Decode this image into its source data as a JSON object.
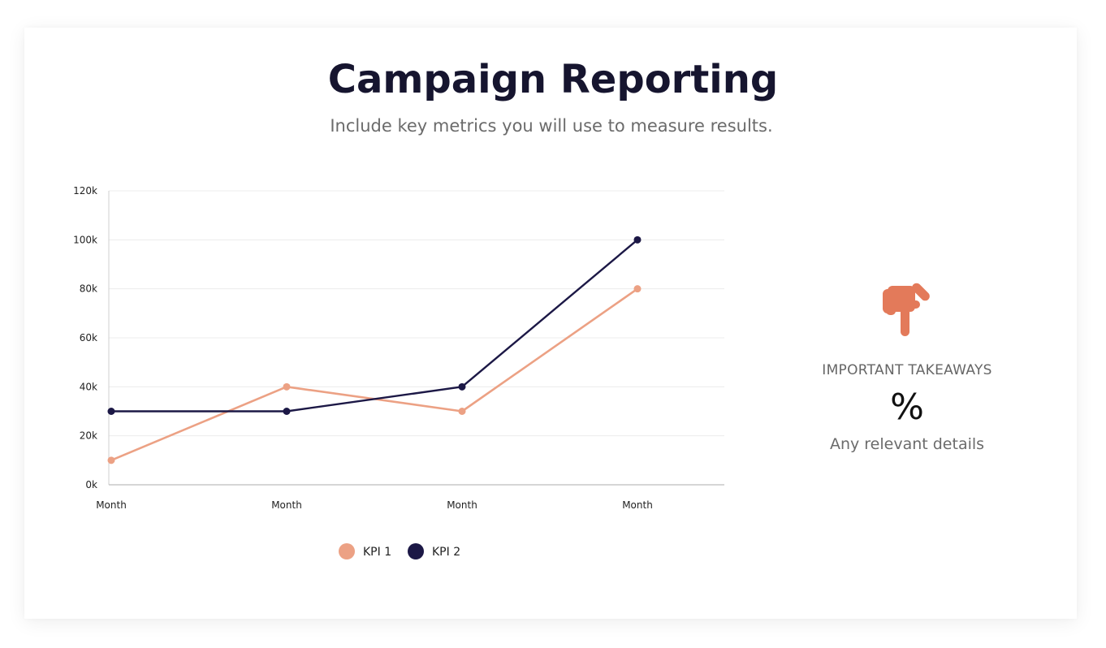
{
  "header": {
    "title": "Campaign Reporting",
    "subtitle": "Include key metrics you will use to measure results."
  },
  "chart_data": {
    "type": "line",
    "categories": [
      "Month",
      "Month",
      "Month",
      "Month"
    ],
    "series": [
      {
        "name": "KPI 1",
        "values": [
          10,
          40,
          30,
          80
        ],
        "color": "#eca184"
      },
      {
        "name": "KPI 2",
        "values": [
          30,
          30,
          40,
          100
        ],
        "color": "#1c1846"
      }
    ],
    "ylim": [
      0,
      120
    ],
    "yticks": [
      0,
      20,
      40,
      60,
      80,
      100,
      120
    ],
    "ytick_labels": [
      "0k",
      "20k",
      "40k",
      "60k",
      "80k",
      "100k",
      "120k"
    ],
    "grid": true,
    "legend_position": "bottom"
  },
  "takeaways": {
    "icon": "pointing-down-hand-icon",
    "icon_color": "#e37a5a",
    "heading": "IMPORTANT TAKEAWAYS",
    "value": "%",
    "details": "Any relevant details"
  }
}
